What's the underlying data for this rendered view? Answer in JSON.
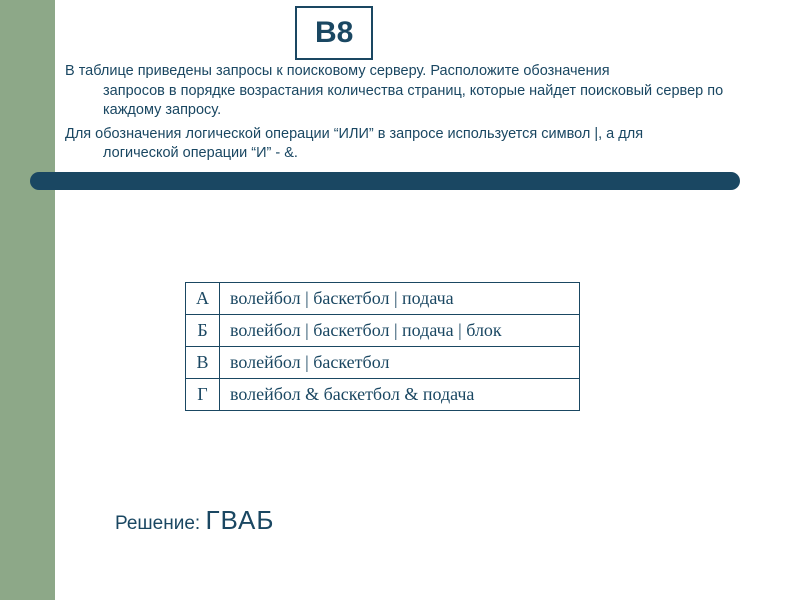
{
  "colors": {
    "sidebar_bg": "#8da888",
    "badge_border": "#1a4762",
    "badge_text": "#1a4762",
    "body_text": "#1a4762",
    "hr_bar": "#1a4762",
    "table_border": "#1a4762",
    "table_text": "#1a4762",
    "solution_text": "#1a4762"
  },
  "badge": {
    "label": "В8"
  },
  "paragraphs": {
    "p1_lead": "В таблице приведены запросы к поисковому серверу. Расположите обозначения ",
    "p1_cont": "запросов в порядке возрастания количества страниц, которые найдет поисковый сервер по  каждому запросу.",
    "p2_lead": "Для обозначения логической операции “ИЛИ” в запросе используется символ |, а для ",
    "p2_cont": "логической операции “И” - &."
  },
  "table": {
    "rows": [
      {
        "letter": "А",
        "query": "волейбол | баскетбол | подача"
      },
      {
        "letter": "Б",
        "query": "волейбол | баскетбол | подача | блок"
      },
      {
        "letter": "В",
        "query": "волейбол | баскетбол"
      },
      {
        "letter": "Г",
        "query": "волейбол & баскетбол & подача"
      }
    ]
  },
  "solution": {
    "label": "Решение: ",
    "answer": "ГВАБ"
  }
}
